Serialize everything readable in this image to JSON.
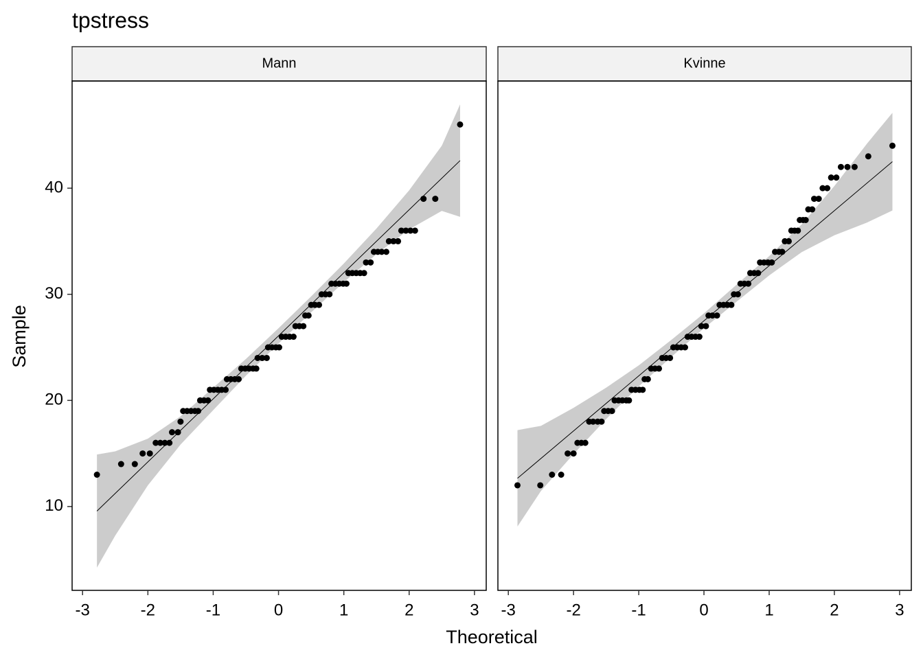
{
  "chart_data": {
    "type": "qq",
    "title": "tpstress",
    "x_label": "Theoretical",
    "y_label": "Sample",
    "xlim": [
      -3.16,
      3.18
    ],
    "ylim": [
      2.1,
      50.1
    ],
    "xticks": [
      -3,
      -2,
      -1,
      0,
      1,
      2,
      3
    ],
    "yticks": [
      10,
      20,
      30,
      40
    ],
    "point_color": "#000000",
    "line_color": "#000000",
    "band_color": "#cccccc",
    "panels": [
      {
        "name": "Mann",
        "points": {
          "x": [
            -2.78,
            -2.41,
            -2.2,
            -2.08,
            -1.97,
            -1.88,
            -1.81,
            -1.74,
            -1.67,
            -1.63,
            -1.54,
            -1.5,
            -1.46,
            -1.4,
            -1.34,
            -1.28,
            -1.23,
            -1.2,
            -1.14,
            -1.08,
            -1.05,
            -0.99,
            -0.93,
            -0.87,
            -0.81,
            -0.79,
            -0.73,
            -0.67,
            -0.61,
            -0.57,
            -0.51,
            -0.45,
            -0.39,
            -0.34,
            -0.32,
            -0.25,
            -0.18,
            -0.16,
            -0.1,
            -0.04,
            0.01,
            0.05,
            0.11,
            0.17,
            0.23,
            0.26,
            0.32,
            0.38,
            0.41,
            0.46,
            0.5,
            0.56,
            0.62,
            0.66,
            0.72,
            0.78,
            0.81,
            0.87,
            0.93,
            0.99,
            1.04,
            1.07,
            1.13,
            1.19,
            1.25,
            1.31,
            1.34,
            1.41,
            1.46,
            1.52,
            1.58,
            1.65,
            1.69,
            1.76,
            1.83,
            1.88,
            1.95,
            2.02,
            2.09,
            2.22,
            2.4,
            2.78
          ],
          "values": [
            13,
            14,
            14,
            15,
            15,
            16,
            16,
            16,
            16,
            17,
            17,
            18,
            19,
            19,
            19,
            19,
            19,
            20,
            20,
            20,
            21,
            21,
            21,
            21,
            21,
            22,
            22,
            22,
            22,
            23,
            23,
            23,
            23,
            23,
            24,
            24,
            24,
            25,
            25,
            25,
            25,
            26,
            26,
            26,
            26,
            27,
            27,
            27,
            28,
            28,
            29,
            29,
            29,
            30,
            30,
            30,
            31,
            31,
            31,
            31,
            31,
            32,
            32,
            32,
            32,
            32,
            33,
            33,
            34,
            34,
            34,
            34,
            35,
            35,
            35,
            36,
            36,
            36,
            36,
            39,
            39,
            46
          ]
        },
        "line": {
          "x": [
            -2.78,
            2.78
          ],
          "values": [
            9.57,
            42.6
          ]
        },
        "band": {
          "x": [
            -2.78,
            -2.5,
            -2,
            -1.5,
            -1,
            -0.5,
            0,
            0.5,
            1,
            1.5,
            2,
            2.5,
            2.78
          ],
          "upper": [
            14.9,
            15.2,
            16.4,
            18.5,
            21.2,
            23.9,
            26.8,
            29.8,
            32.9,
            36.2,
            39.8,
            44,
            47.9
          ],
          "lower": [
            4.24,
            7.26,
            12.0,
            15.84,
            19.08,
            22.32,
            25.36,
            28.3,
            31.14,
            33.78,
            36.12,
            37.86,
            37.3
          ]
        }
      },
      {
        "name": "Kvinne",
        "points": {
          "x": [
            -2.86,
            -2.51,
            -2.33,
            -2.19,
            -2.09,
            -2.0,
            -1.94,
            -1.88,
            -1.82,
            -1.76,
            -1.7,
            -1.63,
            -1.57,
            -1.53,
            -1.47,
            -1.41,
            -1.37,
            -1.31,
            -1.25,
            -1.19,
            -1.15,
            -1.11,
            -1.05,
            -0.99,
            -0.94,
            -0.91,
            -0.86,
            -0.81,
            -0.75,
            -0.69,
            -0.64,
            -0.58,
            -0.52,
            -0.47,
            -0.41,
            -0.35,
            -0.29,
            -0.25,
            -0.19,
            -0.13,
            -0.07,
            -0.04,
            0.03,
            0.07,
            0.13,
            0.2,
            0.24,
            0.3,
            0.36,
            0.42,
            0.46,
            0.52,
            0.56,
            0.62,
            0.68,
            0.71,
            0.77,
            0.83,
            0.86,
            0.92,
            0.98,
            1.04,
            1.09,
            1.15,
            1.2,
            1.24,
            1.3,
            1.34,
            1.39,
            1.44,
            1.47,
            1.52,
            1.56,
            1.6,
            1.66,
            1.69,
            1.76,
            1.82,
            1.89,
            1.95,
            2.03,
            2.1,
            2.2,
            2.31,
            2.52,
            2.89
          ],
          "values": [
            12,
            12,
            13,
            13,
            15,
            15,
            16,
            16,
            16,
            18,
            18,
            18,
            18,
            19,
            19,
            19,
            20,
            20,
            20,
            20,
            20,
            21,
            21,
            21,
            21,
            22,
            22,
            23,
            23,
            23,
            24,
            24,
            24,
            25,
            25,
            25,
            25,
            26,
            26,
            26,
            26,
            27,
            27,
            28,
            28,
            28,
            29,
            29,
            29,
            29,
            30,
            30,
            31,
            31,
            31,
            32,
            32,
            32,
            33,
            33,
            33,
            33,
            34,
            34,
            34,
            35,
            35,
            36,
            36,
            36,
            37,
            37,
            37,
            38,
            38,
            39,
            39,
            40,
            40,
            41,
            41,
            42,
            42,
            42,
            43,
            44
          ]
        },
        "line": {
          "x": [
            -2.86,
            2.89
          ],
          "values": [
            12.66,
            42.5
          ]
        },
        "band": {
          "x": [
            -2.86,
            -2.5,
            -2,
            -1.5,
            -1,
            -0.5,
            0,
            0.5,
            1,
            1.5,
            2,
            2.5,
            2.89
          ],
          "upper": [
            17.2,
            17.6,
            19.3,
            21.2,
            23.3,
            25.7,
            28.2,
            30.9,
            33.6,
            36.6,
            40.2,
            44.2,
            47.1
          ],
          "lower": [
            8.12,
            11.46,
            14.94,
            18.24,
            21.32,
            24.1,
            26.8,
            29.3,
            31.78,
            33.98,
            35.56,
            36.76,
            37.9
          ]
        }
      }
    ]
  }
}
